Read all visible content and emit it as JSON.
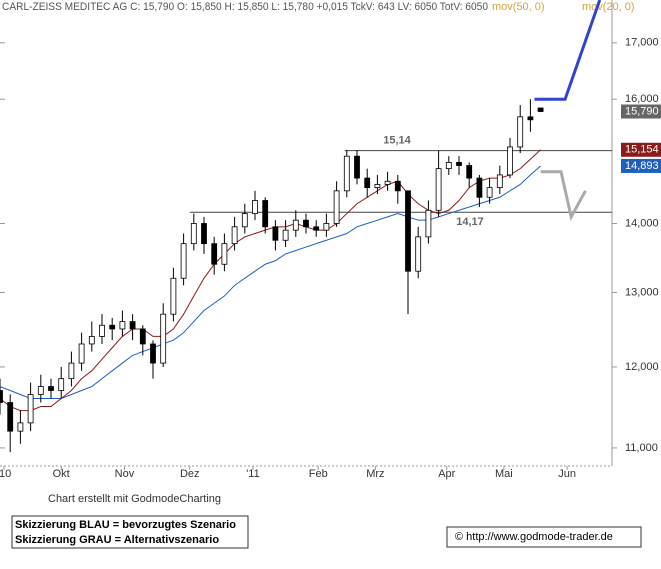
{
  "chart_data": {
    "type": "candlestick",
    "header": "CARL-ZEISS MEDITEC AG C: 15,790 O: 15,850 H: 15,850 L: 15,780 +0,015 TckV: 643 LV: 6050 TotV: 6050",
    "footer": "Chart erstellt mit GodmodeCharting",
    "notes": [
      "Skizzierung BLAU = bevorzugtes Szenario",
      "Skizzierung GRAU = Alternativszenario"
    ],
    "copyright": "© http://www.godmode-trader.de",
    "log_scale": true,
    "xlim": [
      0,
      300
    ],
    "ylim": [
      10.8,
      17.8
    ],
    "xticks": [
      {
        "value": 2,
        "label": "'10"
      },
      {
        "value": 30,
        "label": "Okt"
      },
      {
        "value": 61,
        "label": "Nov"
      },
      {
        "value": 93,
        "label": "Dez"
      },
      {
        "value": 124,
        "label": "'11"
      },
      {
        "value": 156,
        "label": "Feb"
      },
      {
        "value": 184,
        "label": "Mrz"
      },
      {
        "value": 219,
        "label": "Apr"
      },
      {
        "value": 247,
        "label": "Mai"
      },
      {
        "value": 278,
        "label": "Jun"
      }
    ],
    "yticks": [
      {
        "value": 11,
        "label": "11,000"
      },
      {
        "value": 12,
        "label": "12,000"
      },
      {
        "value": 13,
        "label": "13,000"
      },
      {
        "value": 14,
        "label": "14,000"
      },
      {
        "value": 16,
        "label": "16,000"
      },
      {
        "value": 17,
        "label": "17,000"
      }
    ],
    "x": [
      0,
      5,
      10,
      15,
      20,
      25,
      30,
      35,
      40,
      45,
      50,
      55,
      60,
      65,
      70,
      75,
      80,
      85,
      90,
      95,
      100,
      105,
      110,
      115,
      120,
      125,
      130,
      135,
      140,
      145,
      150,
      155,
      160,
      165,
      170,
      175,
      180,
      185,
      190,
      195,
      200,
      205,
      210,
      215,
      220,
      225,
      230,
      235,
      240,
      245,
      250,
      255,
      260,
      265
    ],
    "open": [
      11.7,
      11.55,
      11.2,
      11.3,
      11.65,
      11.75,
      11.7,
      11.85,
      12.05,
      12.3,
      12.4,
      12.55,
      12.5,
      12.6,
      12.5,
      12.3,
      12.05,
      12.7,
      13.2,
      13.7,
      14.0,
      13.7,
      13.4,
      13.7,
      13.95,
      14.15,
      14.35,
      13.95,
      13.75,
      13.9,
      14.05,
      13.95,
      13.9,
      14.0,
      14.5,
      15.05,
      14.7,
      14.55,
      14.6,
      14.65,
      14.5,
      13.3,
      13.8,
      14.2,
      14.85,
      14.95,
      14.9,
      14.7,
      14.4,
      14.55,
      14.75,
      15.2,
      15.7,
      15.85
    ],
    "high": [
      11.85,
      11.65,
      11.45,
      11.8,
      11.9,
      11.85,
      12.0,
      12.2,
      12.45,
      12.6,
      12.7,
      12.65,
      12.75,
      12.7,
      12.55,
      12.35,
      12.85,
      13.35,
      13.85,
      14.15,
      14.1,
      13.8,
      13.85,
      14.1,
      14.3,
      14.5,
      14.4,
      14.05,
      14.05,
      14.2,
      14.15,
      14.05,
      14.15,
      14.65,
      15.15,
      15.15,
      14.85,
      14.75,
      14.8,
      14.75,
      14.5,
      13.95,
      14.35,
      15.14,
      15.05,
      15.05,
      14.95,
      14.75,
      14.7,
      14.9,
      15.35,
      15.9,
      16.0,
      15.85
    ],
    "low": [
      11.4,
      10.95,
      11.05,
      11.2,
      11.55,
      11.6,
      11.6,
      11.75,
      11.95,
      12.2,
      12.3,
      12.35,
      12.4,
      12.35,
      12.15,
      11.85,
      12.0,
      12.6,
      13.1,
      13.6,
      13.55,
      13.25,
      13.3,
      13.6,
      13.85,
      14.05,
      13.85,
      13.6,
      13.65,
      13.8,
      13.85,
      13.8,
      13.8,
      13.95,
      14.4,
      14.6,
      14.4,
      14.45,
      14.5,
      14.3,
      12.7,
      13.2,
      13.7,
      14.1,
      14.75,
      14.75,
      14.55,
      14.25,
      14.3,
      14.45,
      14.7,
      15.1,
      15.45,
      15.78
    ],
    "close": [
      11.55,
      11.2,
      11.3,
      11.65,
      11.75,
      11.7,
      11.85,
      12.05,
      12.3,
      12.4,
      12.55,
      12.5,
      12.6,
      12.5,
      12.3,
      12.05,
      12.7,
      13.2,
      13.7,
      14.0,
      13.7,
      13.4,
      13.7,
      13.95,
      14.15,
      14.35,
      13.95,
      13.75,
      13.9,
      14.05,
      13.95,
      13.9,
      14.0,
      14.5,
      15.05,
      14.7,
      14.55,
      14.6,
      14.65,
      14.5,
      13.3,
      13.8,
      14.2,
      14.85,
      14.95,
      14.9,
      14.7,
      14.4,
      14.55,
      14.75,
      15.2,
      15.7,
      15.65,
      15.79
    ],
    "last": {
      "value": 15.79,
      "label": "15,790"
    },
    "series": [
      {
        "name": "mov(50, 0)",
        "color": "#1f5fbf",
        "value_labels": "14,893",
        "values": [
          11.75,
          11.7,
          11.65,
          11.6,
          11.6,
          11.6,
          11.6,
          11.65,
          11.7,
          11.75,
          11.85,
          11.95,
          12.05,
          12.15,
          12.2,
          12.25,
          12.3,
          12.35,
          12.45,
          12.6,
          12.75,
          12.85,
          12.95,
          13.1,
          13.2,
          13.3,
          13.4,
          13.45,
          13.55,
          13.6,
          13.65,
          13.7,
          13.75,
          13.8,
          13.85,
          13.95,
          14.0,
          14.05,
          14.1,
          14.15,
          14.1,
          14.05,
          14.05,
          14.1,
          14.15,
          14.2,
          14.25,
          14.3,
          14.35,
          14.4,
          14.5,
          14.6,
          14.75,
          14.893
        ]
      },
      {
        "name": "mov(20, 0)",
        "color": "#8b1a1a",
        "value_labels": "15,154",
        "values": [
          11.6,
          11.5,
          11.45,
          11.45,
          11.5,
          11.5,
          11.6,
          11.7,
          11.85,
          11.95,
          12.1,
          12.25,
          12.4,
          12.5,
          12.5,
          12.4,
          12.4,
          12.5,
          12.7,
          12.95,
          13.2,
          13.4,
          13.55,
          13.7,
          13.8,
          13.85,
          13.9,
          13.95,
          13.95,
          14.0,
          13.95,
          13.9,
          13.9,
          14.0,
          14.15,
          14.3,
          14.4,
          14.5,
          14.6,
          14.65,
          14.45,
          14.3,
          14.2,
          14.15,
          14.2,
          14.35,
          14.55,
          14.65,
          14.7,
          14.7,
          14.75,
          14.85,
          15.0,
          15.154
        ]
      }
    ],
    "levels": [
      {
        "value": 15.14,
        "label": "15,14",
        "x_start": 169
      },
      {
        "value": 14.17,
        "label": "14,17",
        "x_start": 93
      }
    ],
    "sketches": [
      {
        "color": "#3344cc",
        "x": [
          262,
          277,
          294
        ],
        "values": [
          16.0,
          16.0,
          17.8
        ]
      },
      {
        "color": "#aaaaaa",
        "x": [
          265,
          275,
          280,
          287
        ],
        "values": [
          14.8,
          14.8,
          14.1,
          14.5
        ]
      }
    ]
  }
}
